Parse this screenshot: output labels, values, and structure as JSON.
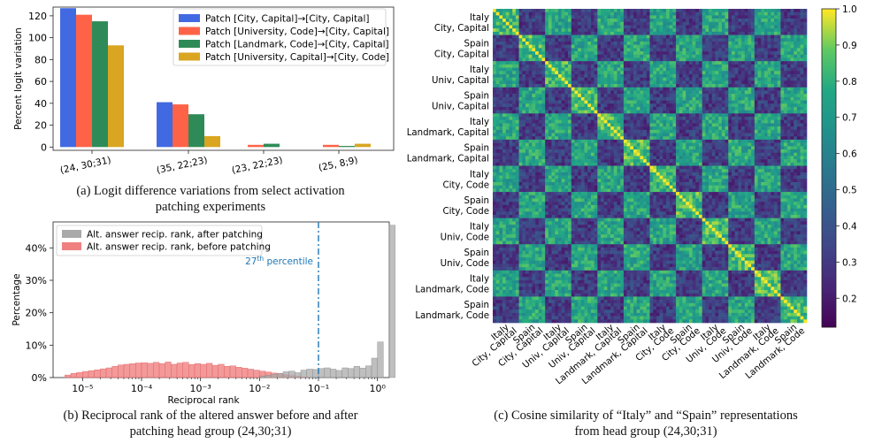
{
  "captions": {
    "a_line1": "(a) Logit difference variations from select activation",
    "a_line2": "patching experiments",
    "b_line1": "(b) Reciprocal rank of the altered answer before and after",
    "b_line2": "patching head group (24,30;31)",
    "c_line1": "(c) Cosine similarity of “Italy” and “Spain” representations",
    "c_line2": "from head group (24,30;31)"
  },
  "chart_data": [
    {
      "id": "a",
      "type": "bar",
      "ylabel": "Percent logit variation",
      "xlabel": "",
      "ylim": [
        -3,
        128
      ],
      "yticks": [
        0,
        20,
        40,
        60,
        80,
        100,
        120
      ],
      "categories": [
        "(24, 30;31)",
        "(35, 22;23)",
        "(23, 22;23)",
        "(25, 8;9)"
      ],
      "legend_position": "top-right",
      "series": [
        {
          "name": "Patch [City, Capital]→[City, Capital]",
          "color": "#4169e1",
          "values": [
            127,
            41,
            0,
            0
          ]
        },
        {
          "name": "Patch [University, Code]→[City, Capital]",
          "color": "#ff6347",
          "values": [
            121,
            39,
            2,
            2
          ]
        },
        {
          "name": "Patch [Landmark, Code]→[City, Capital]",
          "color": "#2e8b57",
          "values": [
            115,
            30,
            3,
            1
          ]
        },
        {
          "name": "Patch [University, Capital]→[City, Code]",
          "color": "#daa520",
          "values": [
            93,
            10,
            0,
            3
          ]
        }
      ]
    },
    {
      "id": "b",
      "type": "bar",
      "xscale": "log",
      "xlabel": "Reciprocal rank",
      "ylabel": "Percentage",
      "xlim_log10": [
        -5.5,
        0.2
      ],
      "ylim": [
        0,
        48
      ],
      "yticks": [
        0,
        10,
        20,
        30,
        40
      ],
      "ytick_labels": [
        "0%",
        "10%",
        "20%",
        "30%",
        "40%"
      ],
      "xticks_log10": [
        -5,
        -4,
        -3,
        -2,
        -1,
        0
      ],
      "xtick_labels": [
        "10⁻⁵",
        "10⁻⁴",
        "10⁻³",
        "10⁻²",
        "10⁻¹",
        "10⁰"
      ],
      "bin_width_log10": 0.1,
      "legend_position": "top-left",
      "annotation": {
        "base": "27",
        "sup": "th",
        "rest": " percentile",
        "x_log10": -1.0,
        "color": "#1f77b4"
      },
      "series": [
        {
          "name": "Alt. answer recip. rank, after patching",
          "color": "#a9a9a9",
          "bins_start_log10": -2.0,
          "values": [
            0.5,
            0.7,
            1.0,
            1.3,
            1.8,
            2.0,
            1.5,
            2.3,
            2.6,
            2.5,
            2.8,
            3.0,
            2.6,
            2.2,
            3.0,
            2.8,
            3.5,
            2.9,
            3.6,
            6.0,
            11.0,
            0,
            47.0
          ]
        },
        {
          "name": "Alt. answer recip. rank, before patching",
          "color": "#f08080",
          "bins_start_log10": -5.3,
          "values": [
            0.8,
            1.3,
            1.6,
            1.9,
            2.1,
            2.4,
            2.7,
            3.0,
            3.5,
            3.9,
            4.1,
            4.3,
            4.5,
            4.6,
            4.4,
            4.7,
            4.3,
            4.8,
            4.1,
            4.5,
            4.7,
            4.0,
            4.3,
            4.1,
            4.4,
            3.8,
            4.1,
            3.5,
            3.6,
            3.2,
            2.9,
            2.6,
            2.3,
            2.0,
            1.7,
            1.4,
            1.2,
            0.9,
            0.6,
            0.4,
            0.2
          ]
        }
      ]
    },
    {
      "id": "c",
      "type": "heatmap",
      "size": 96,
      "block_size": 8,
      "colormap": "viridis",
      "zlim": [
        0.12,
        1.0
      ],
      "colorbar_ticks": [
        0.2,
        0.3,
        0.4,
        0.5,
        0.6,
        0.7,
        0.8,
        0.9,
        1.0
      ],
      "groups": [
        {
          "country": "Italy",
          "context": "City, Capital"
        },
        {
          "country": "Spain",
          "context": "City, Capital"
        },
        {
          "country": "Italy",
          "context": "Univ, Capital"
        },
        {
          "country": "Spain",
          "context": "Univ, Capital"
        },
        {
          "country": "Italy",
          "context": "Landmark, Capital"
        },
        {
          "country": "Spain",
          "context": "Landmark, Capital"
        },
        {
          "country": "Italy",
          "context": "City, Code"
        },
        {
          "country": "Spain",
          "context": "City, Code"
        },
        {
          "country": "Italy",
          "context": "Univ, Code"
        },
        {
          "country": "Spain",
          "context": "Univ, Code"
        },
        {
          "country": "Italy",
          "context": "Landmark, Code"
        },
        {
          "country": "Spain",
          "context": "Landmark, Code"
        }
      ],
      "same_country_similarity": 0.75,
      "cross_country_similarity": 0.35,
      "diagonal_similarity": 1.0
    }
  ]
}
